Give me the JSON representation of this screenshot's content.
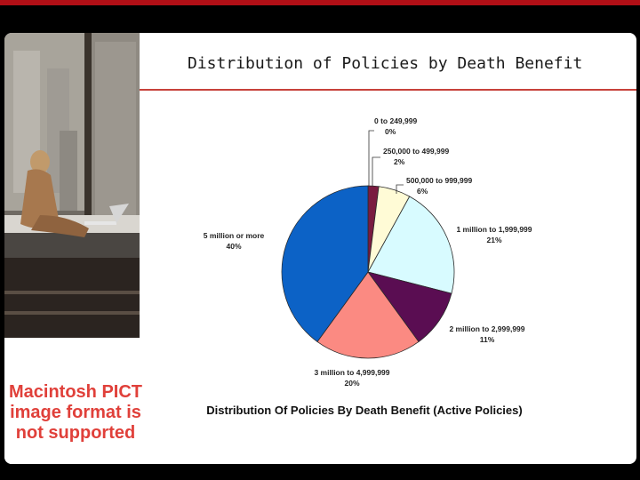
{
  "slide": {
    "title": "Distribution of Policies by Death Benefit",
    "placeholder_text": "Macintosh PICT image format is not supported"
  },
  "colors": {
    "accent_bar": "#b00f16",
    "rule": "#c7413a",
    "pict_text": "#e0403a"
  },
  "chart_data": {
    "type": "pie",
    "title": "Distribution Of Policies By Death Benefit (Active Policies)",
    "slices": [
      {
        "label": "0 to 249,999",
        "value": 0,
        "pct_label": "0%",
        "color": "#c03050"
      },
      {
        "label": "250,000 to 499,999",
        "value": 2,
        "pct_label": "2%",
        "color": "#7a1b40"
      },
      {
        "label": "500,000 to 999,999",
        "value": 6,
        "pct_label": "6%",
        "color": "#fffbd6"
      },
      {
        "label": "1 million to 1,999,999",
        "value": 21,
        "pct_label": "21%",
        "color": "#d8fbff"
      },
      {
        "label": "2 million to 2,999,999",
        "value": 11,
        "pct_label": "11%",
        "color": "#5a0d52"
      },
      {
        "label": "3 million to 4,999,999",
        "value": 20,
        "pct_label": "20%",
        "color": "#fb8a82"
      },
      {
        "label": "5 million or more",
        "value": 40,
        "pct_label": "40%",
        "color": "#0c62c6"
      }
    ]
  }
}
